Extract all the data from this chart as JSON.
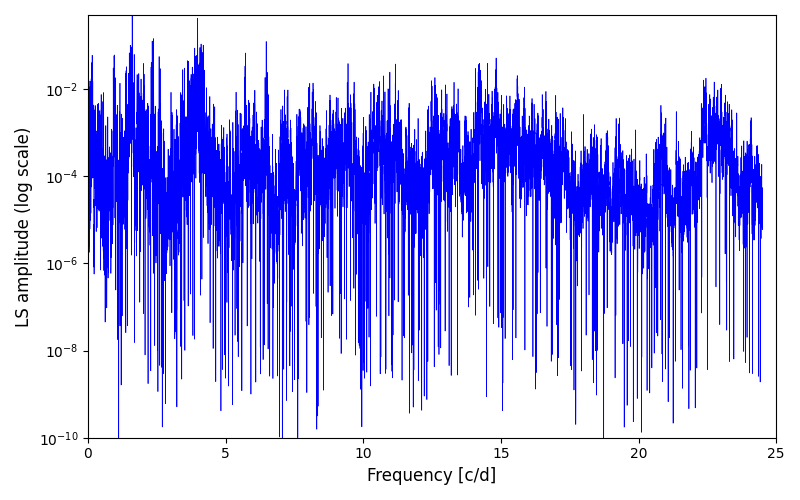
{
  "xlabel": "Frequency [c/d]",
  "ylabel": "LS amplitude (log scale)",
  "xlim": [
    0,
    25
  ],
  "ylim": [
    1e-10,
    0.5
  ],
  "line_color": "#0000ff",
  "line_width": 0.5,
  "freq_max": 24.5,
  "n_points": 15000,
  "seed": 7,
  "figsize": [
    8.0,
    5.0
  ],
  "dpi": 100,
  "xticks": [
    0,
    5,
    10,
    15,
    20,
    25
  ]
}
